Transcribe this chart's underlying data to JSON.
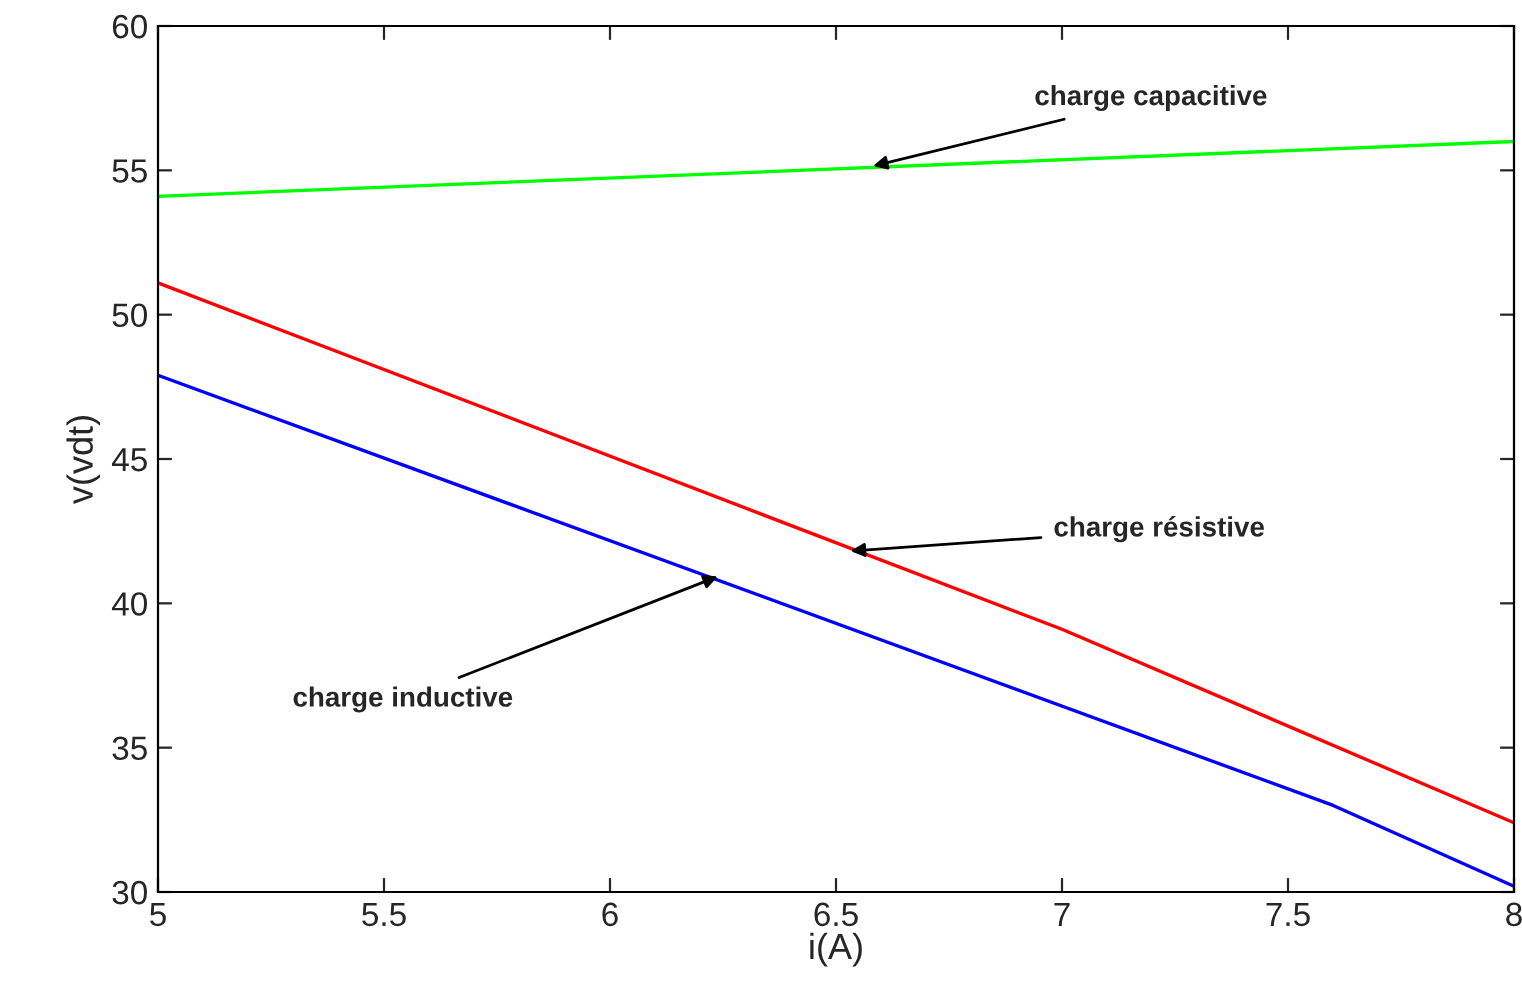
{
  "chart_data": {
    "type": "line",
    "xlabel": "i(A)",
    "ylabel": "v(vdt)",
    "xlim": [
      5,
      8
    ],
    "ylim": [
      30,
      60
    ],
    "xticks": [
      5,
      5.5,
      6,
      6.5,
      7,
      7.5,
      8
    ],
    "yticks": [
      30,
      35,
      40,
      45,
      50,
      55,
      60
    ],
    "grid": false,
    "legend": false,
    "series": [
      {
        "color": "#00ff00",
        "x": [
          5,
          8
        ],
        "values": [
          54.1,
          56.0
        ]
      },
      {
        "color": "#ff0000",
        "x": [
          5,
          7,
          8
        ],
        "values": [
          51.1,
          39.1,
          32.4
        ]
      },
      {
        "color": "#0000ff",
        "x": [
          5,
          7.6,
          8
        ],
        "values": [
          47.9,
          33.0,
          30.2
        ]
      }
    ],
    "annotations": [
      {
        "text": "charge capacitive",
        "x": 6.57,
        "y": 55.1
      },
      {
        "text": "charge résistive",
        "x": 6.52,
        "y": 41.8
      },
      {
        "text": "charge inductive",
        "x": 6.25,
        "y": 41.0
      }
    ]
  }
}
